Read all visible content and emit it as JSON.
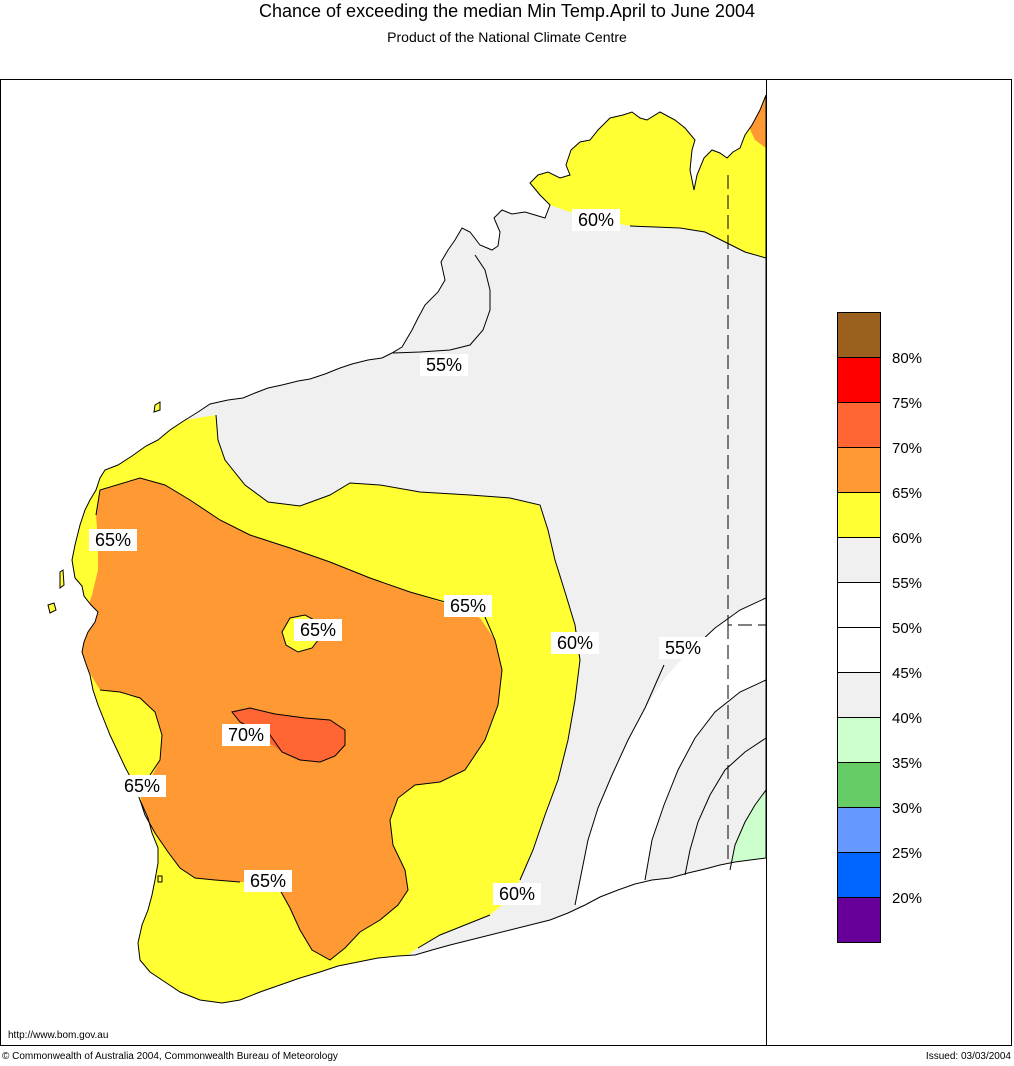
{
  "header": {
    "title": "Chance of exceeding the median Min Temp.April to June 2004",
    "subtitle": "Product of the National Climate Centre"
  },
  "map": {
    "region": "Western Australia",
    "contour_labels": [
      "60%",
      "55%",
      "65%",
      "65%",
      "65%",
      "60%",
      "55%",
      "70%",
      "65%",
      "65%",
      "60%"
    ],
    "colors": {
      "c80": "#9b5f1e",
      "c75": "#ff0000",
      "c70": "#ff6633",
      "c65": "#ff9933",
      "c60": "#ffff33",
      "c55": "#f0f0f0",
      "c50": "#ffffff",
      "c45": "#ffffff",
      "c40": "#f0f0f0",
      "c35": "#ccffcc",
      "c30": "#66cc66",
      "c25": "#6699ff",
      "c20": "#0066ff",
      "c15": "#660099",
      "ocean": "#ffffff"
    }
  },
  "legend": {
    "labels": [
      "80%",
      "75%",
      "70%",
      "65%",
      "60%",
      "55%",
      "50%",
      "45%",
      "40%",
      "35%",
      "30%",
      "25%",
      "20%"
    ],
    "swatch_colors": [
      "#9b5f1e",
      "#ff0000",
      "#ff6633",
      "#ff9933",
      "#ffff33",
      "#f0f0f0",
      "#ffffff",
      "#ffffff",
      "#f0f0f0",
      "#ccffcc",
      "#66cc66",
      "#6699ff",
      "#0066ff",
      "#660099"
    ]
  },
  "footer": {
    "url": "http://www.bom.gov.au",
    "copyright": "© Commonwealth of Australia 2004, Commonwealth Bureau of Meteorology",
    "issued": "Issued: 03/03/2004"
  }
}
